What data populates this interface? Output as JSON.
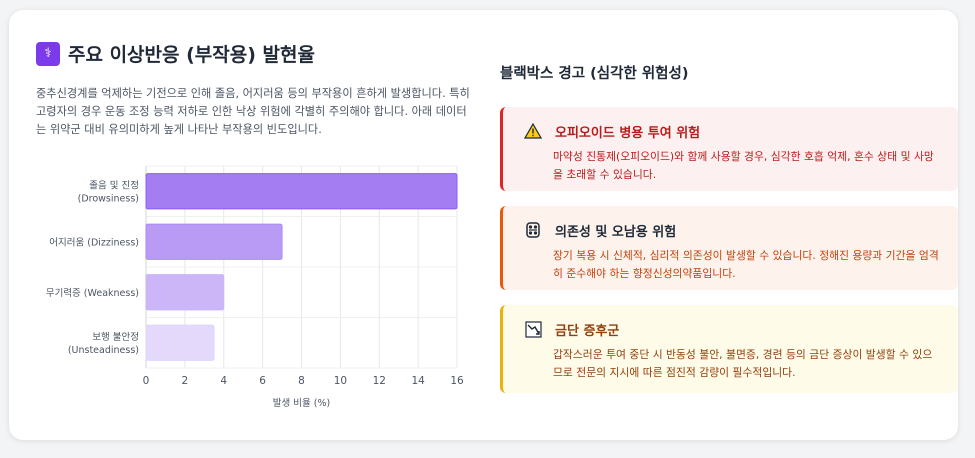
{
  "header": {
    "icon": "medical-icon",
    "title": "주요 이상반응 (부작용) 발현율",
    "description": "중추신경계를 억제하는 기전으로 인해 졸음, 어지러움 등의 부작용이 흔하게 발생합니다. 특히 고령자의 경우 운동 조정 능력 저하로 인한 낙상 위험에 각별히 주의해야 합니다. 아래 데이터는 위약군 대비 유의미하게 높게 나타난 부작용의 빈도입니다."
  },
  "chart_data": {
    "type": "bar",
    "orientation": "horizontal",
    "categories": [
      [
        "졸음 및 진정",
        "(Drowsiness)"
      ],
      [
        "어지러움 (Dizziness)"
      ],
      [
        "무기력증 (Weakness)"
      ],
      [
        "보행 불안정",
        "(Unsteadiness)"
      ]
    ],
    "values": [
      16,
      7,
      4,
      3.5
    ],
    "colors": [
      "#a47df3",
      "#b99af5",
      "#cdb6f8",
      "#e4d8fb"
    ],
    "borders": [
      "#8b5cf6",
      "#a78bfa",
      "#c4b5fd",
      "#ddd6fe"
    ],
    "xlabel": "발생 비율 (%)",
    "xlim": [
      0,
      16
    ],
    "xticks": [
      "0",
      "2",
      "4",
      "6",
      "8",
      "10",
      "12",
      "14",
      "16"
    ],
    "grid": true
  },
  "warnings": {
    "title": "블랙박스 경고 (심각한 위험성)",
    "items": [
      {
        "icon": "warning-triangle-icon",
        "title": "오피오이드 병용 투여 위험",
        "text": "마약성 진통제(오피오이드)와 함께 사용할 경우, 심각한 호흡 억제, 혼수 상태 및 사망을 초래할 수 있습니다."
      },
      {
        "icon": "link-chain-icon",
        "title": "의존성 및 오남용 위험",
        "text": "장기 복용 시 신체적, 심리적 의존성이 발생할 수 있습니다. 정해진 용량과 기간을 엄격히 준수해야 하는 향정신성의약품입니다."
      },
      {
        "icon": "trend-down-icon",
        "title": "금단 증후군",
        "text": "갑작스러운 투여 중단 시 반동성 불안, 불면증, 경련 등의 금단 증상이 발생할 수 있으므로 전문의 지시에 따른 점진적 감량이 필수적입니다."
      }
    ]
  }
}
